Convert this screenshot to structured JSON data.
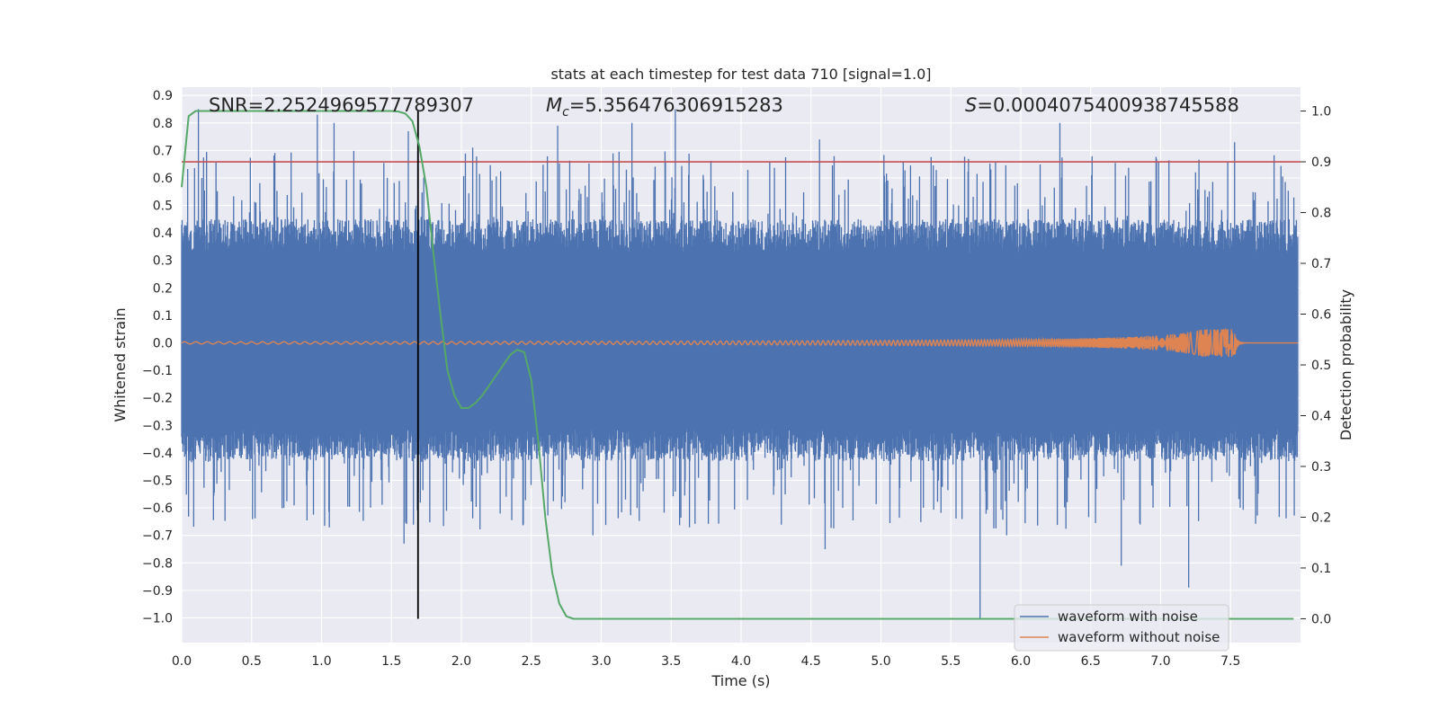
{
  "chart_data": {
    "type": "line",
    "title": "stats at each timestep for test data 710 [signal=1.0]",
    "xlabel": "Time (s)",
    "ylabel": "Whitened strain",
    "ylabel_right": "Detection probability",
    "xlim": [
      0.0,
      8.0
    ],
    "ylim": [
      -1.09,
      0.93
    ],
    "ylim_right": [
      -0.047,
      1.047
    ],
    "x_ticks": [
      "0.0",
      "0.5",
      "1.0",
      "1.5",
      "2.0",
      "2.5",
      "3.0",
      "3.5",
      "4.0",
      "4.5",
      "5.0",
      "5.5",
      "6.0",
      "6.5",
      "7.0",
      "7.5"
    ],
    "y_ticks": [
      "−1.0",
      "−0.9",
      "−0.8",
      "−0.7",
      "−0.6",
      "−0.5",
      "−0.4",
      "−0.3",
      "−0.2",
      "−0.1",
      "0.0",
      "0.1",
      "0.2",
      "0.3",
      "0.4",
      "0.5",
      "0.6",
      "0.7",
      "0.8",
      "0.9"
    ],
    "y_ticks_right": [
      "0.0",
      "0.1",
      "0.2",
      "0.3",
      "0.4",
      "0.5",
      "0.6",
      "0.7",
      "0.8",
      "0.9",
      "1.0"
    ],
    "grid": true,
    "legend_position": "bottom-right",
    "annotations": {
      "snr": "SNR=2.2524969577789307",
      "mc_symbol": "M",
      "mc_sub": "c",
      "mc_value": "=5.356476306915283",
      "s_symbol": "S",
      "s_value": "=0.0004075400938745588"
    },
    "series": [
      {
        "name": "waveform with noise",
        "color": "#4c72b0",
        "kind": "noise",
        "upper_envelope_amplitude": 0.45,
        "lower_envelope_amplitude": -0.43,
        "peaks": [
          [
            0.12,
            0.85
          ],
          [
            0.97,
            0.83
          ],
          [
            1.09,
            0.8
          ],
          [
            1.62,
            0.77
          ],
          [
            2.08,
            0.71
          ],
          [
            2.69,
            0.79
          ],
          [
            3.22,
            0.8
          ],
          [
            3.53,
            0.85
          ],
          [
            4.56,
            0.74
          ],
          [
            6.28,
            0.8
          ],
          [
            7.53,
            0.73
          ],
          [
            5.71,
            -1.0
          ],
          [
            7.2,
            -0.89
          ],
          [
            6.72,
            -0.81
          ],
          [
            4.6,
            -0.75
          ],
          [
            1.59,
            -0.73
          ],
          [
            2.94,
            -0.7
          ],
          [
            5.9,
            -0.7
          ]
        ]
      },
      {
        "name": "waveform without noise",
        "color": "#dd8452",
        "kind": "chirp",
        "merger_time": 7.53,
        "start_amplitude": 0.004,
        "peak_amplitude": 0.05
      },
      {
        "name": "",
        "color": "#55a868",
        "axis": "right",
        "x": [
          0.0,
          0.05,
          0.1,
          0.15,
          0.2,
          0.4,
          0.6,
          0.8,
          1.0,
          1.2,
          1.4,
          1.5,
          1.55,
          1.6,
          1.65,
          1.7,
          1.75,
          1.8,
          1.85,
          1.9,
          1.95,
          2.0,
          2.05,
          2.1,
          2.15,
          2.2,
          2.25,
          2.3,
          2.35,
          2.4,
          2.45,
          2.5,
          2.55,
          2.6,
          2.65,
          2.7,
          2.75,
          2.8,
          3.0,
          4.0,
          5.0,
          6.0,
          7.0,
          7.95
        ],
        "values": [
          0.85,
          0.99,
          1.0,
          1.0,
          1.0,
          1.0,
          1.0,
          1.0,
          1.0,
          1.0,
          1.0,
          1.0,
          0.999,
          0.995,
          0.98,
          0.93,
          0.85,
          0.72,
          0.6,
          0.49,
          0.44,
          0.415,
          0.415,
          0.425,
          0.44,
          0.46,
          0.48,
          0.5,
          0.52,
          0.53,
          0.525,
          0.47,
          0.35,
          0.2,
          0.09,
          0.03,
          0.005,
          0.0,
          0.0,
          0.0,
          0.0,
          0.0,
          0.0,
          0.0
        ]
      }
    ],
    "threshold_right": 0.9,
    "threshold_color": "#c44e52",
    "vertical_marker_x": 1.69
  }
}
